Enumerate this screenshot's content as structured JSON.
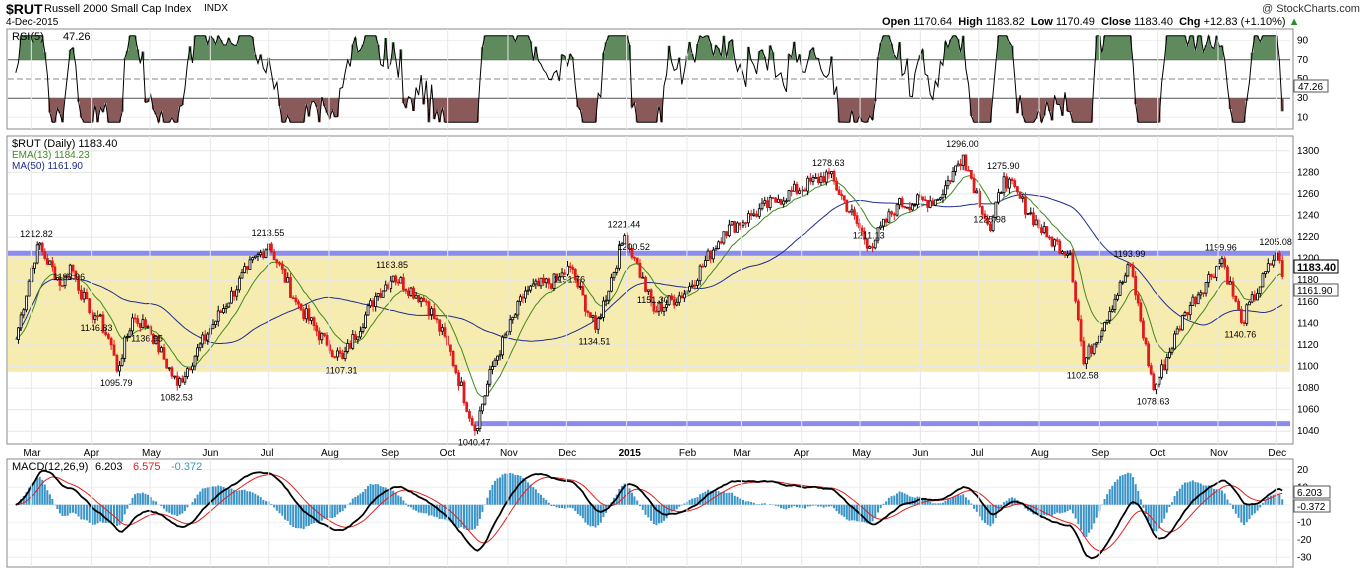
{
  "header": {
    "symbol": "$RUT",
    "name": "Russell 2000 Small Cap Index",
    "exchange": "INDX",
    "date": "4-Dec-2015",
    "copyright": "@ StockCharts.com",
    "open_label": "Open",
    "open": "1170.64",
    "high_label": "High",
    "high": "1183.82",
    "low_label": "Low",
    "low": "1170.49",
    "close_label": "Close",
    "close": "1183.40",
    "chg_label": "Chg",
    "chg": "+12.83 (+1.10%)"
  },
  "rsi_panel": {
    "label": "RSI(5)",
    "value": "47.26",
    "ticks": [
      90,
      70,
      50,
      30,
      10
    ]
  },
  "price_panel": {
    "legend": "$RUT (Daily) 1183.40",
    "ema_label": "EMA(13) 1184.23",
    "ma_label": "MA(50) 1161.90",
    "last_close_tag": "1183.40",
    "ma_tag": "1161.90",
    "ticks": [
      1300,
      1280,
      1260,
      1240,
      1220,
      1200,
      1180,
      1160,
      1140,
      1120,
      1100,
      1080,
      1060,
      1040
    ],
    "callouts": [
      "1212.82",
      "1193.96",
      "1157.87",
      "1146.83",
      "1136.95",
      "1095.79",
      "1082.53",
      "1213.55",
      "1183.85",
      "1107.31",
      "1040.47",
      "1191.76",
      "1221.44",
      "1200.52",
      "1134.51",
      "1151.30",
      "1278.63",
      "1211.13",
      "1296.00",
      "1275.90",
      "1225.98",
      "1193.99",
      "1102.58",
      "1078.63",
      "1199.96",
      "1205.08",
      "1140.76"
    ]
  },
  "macd_panel": {
    "label": "MACD(12,26,9)",
    "macd": "6.203",
    "signal": "6.575",
    "hist": "-0.372",
    "ticks": [
      20,
      10,
      0,
      -10,
      -20,
      -30
    ],
    "tag_macd": "6.203",
    "tag_hist": "-0.372"
  },
  "x_axis": {
    "labels": [
      "Mar",
      "Apr",
      "May",
      "Jun",
      "Jul",
      "Aug",
      "Sep",
      "Oct",
      "Nov",
      "Dec",
      "2015",
      "Feb",
      "Mar",
      "Apr",
      "May",
      "Jun",
      "Jul",
      "Aug",
      "Sep",
      "Oct",
      "Nov",
      "Dec"
    ]
  },
  "colors": {
    "up_candle": "#000000",
    "down_candle": "#e01b1b",
    "ema": "#3f8a1c",
    "ma": "#1f2c8c",
    "support_band": "#f7ecb0",
    "support_line": "#8c8cf0",
    "rsi_overbought": "#5e8a5e",
    "rsi_oversold": "#8a5a5a",
    "macd_hist": "#3a94c8",
    "macd_signal": "#e02020"
  },
  "chart_data": {
    "type": "line",
    "title": "Russell 2000 Small Cap Index",
    "series_name": "$RUT (Daily)",
    "x": [
      "2014-03",
      "2014-04",
      "2014-05",
      "2014-06",
      "2014-07",
      "2014-08",
      "2014-09",
      "2014-10",
      "2014-11",
      "2014-12",
      "2015-01",
      "2015-02",
      "2015-03",
      "2015-04",
      "2015-05",
      "2015-06",
      "2015-07",
      "2015-08",
      "2015-09",
      "2015-10",
      "2015-11",
      "2015-12"
    ],
    "ylim": [
      1030,
      1310
    ],
    "price_points": [
      {
        "date": "2014-02-21",
        "close": 1125
      },
      {
        "date": "2014-03-04",
        "close": 1212.82
      },
      {
        "date": "2014-03-17",
        "close": 1175
      },
      {
        "date": "2014-03-21",
        "close": 1193.96
      },
      {
        "date": "2014-03-31",
        "close": 1150
      },
      {
        "date": "2014-04-04",
        "close": 1146.83
      },
      {
        "date": "2014-04-11",
        "close": 1120
      },
      {
        "date": "2014-04-14",
        "close": 1095.79
      },
      {
        "date": "2014-04-22",
        "close": 1145
      },
      {
        "date": "2014-04-30",
        "close": 1136.95
      },
      {
        "date": "2014-05-15",
        "close": 1082.53
      },
      {
        "date": "2014-06-01",
        "close": 1135
      },
      {
        "date": "2014-06-20",
        "close": 1190
      },
      {
        "date": "2014-07-01",
        "close": 1213.55
      },
      {
        "date": "2014-07-15",
        "close": 1160
      },
      {
        "date": "2014-07-31",
        "close": 1120
      },
      {
        "date": "2014-08-08",
        "close": 1107.31
      },
      {
        "date": "2014-08-25",
        "close": 1165
      },
      {
        "date": "2014-09-03",
        "close": 1183.85
      },
      {
        "date": "2014-09-20",
        "close": 1160
      },
      {
        "date": "2014-10-01",
        "close": 1120
      },
      {
        "date": "2014-10-15",
        "close": 1040.47
      },
      {
        "date": "2014-10-24",
        "close": 1100
      },
      {
        "date": "2014-11-10",
        "close": 1170
      },
      {
        "date": "2014-11-26",
        "close": 1180
      },
      {
        "date": "2014-12-03",
        "close": 1191.76
      },
      {
        "date": "2014-12-16",
        "close": 1134.51
      },
      {
        "date": "2014-12-31",
        "close": 1221.44
      },
      {
        "date": "2015-01-05",
        "close": 1200.52
      },
      {
        "date": "2015-01-15",
        "close": 1151.3
      },
      {
        "date": "2015-02-01",
        "close": 1170
      },
      {
        "date": "2015-02-20",
        "close": 1225
      },
      {
        "date": "2015-03-06",
        "close": 1240
      },
      {
        "date": "2015-03-20",
        "close": 1255
      },
      {
        "date": "2015-04-15",
        "close": 1278.63
      },
      {
        "date": "2015-05-06",
        "close": 1211.13
      },
      {
        "date": "2015-05-20",
        "close": 1250
      },
      {
        "date": "2015-06-10",
        "close": 1255
      },
      {
        "date": "2015-06-23",
        "close": 1296.0
      },
      {
        "date": "2015-07-07",
        "close": 1225.98
      },
      {
        "date": "2015-07-14",
        "close": 1275.9
      },
      {
        "date": "2015-08-05",
        "close": 1220
      },
      {
        "date": "2015-08-17",
        "close": 1205
      },
      {
        "date": "2015-08-24",
        "close": 1102.58
      },
      {
        "date": "2015-09-17",
        "close": 1193.99
      },
      {
        "date": "2015-09-29",
        "close": 1078.63
      },
      {
        "date": "2015-10-15",
        "close": 1150
      },
      {
        "date": "2015-11-03",
        "close": 1199.96
      },
      {
        "date": "2015-11-13",
        "close": 1140.76
      },
      {
        "date": "2015-12-01",
        "close": 1205.08
      },
      {
        "date": "2015-12-04",
        "close": 1183.4
      }
    ],
    "support_band": [
      1095,
      1205
    ],
    "support_line_low": 1047,
    "rsi": [
      50,
      85,
      20,
      75,
      10,
      80,
      60,
      85,
      30,
      90,
      15,
      70,
      45,
      85,
      25,
      70,
      50,
      20,
      80,
      47.26
    ],
    "macd": [
      -6,
      14,
      3,
      12,
      -10,
      15,
      10,
      -5,
      -14,
      -20,
      8,
      22,
      5,
      12,
      -2,
      18,
      5,
      12,
      10,
      -2,
      -26,
      -10,
      10,
      15,
      6.2
    ],
    "macd_signal": [
      -4,
      10,
      6,
      8,
      -5,
      12,
      12,
      0,
      -10,
      -18,
      0,
      20,
      10,
      10,
      2,
      14,
      8,
      10,
      10,
      2,
      -20,
      -14,
      4,
      12,
      6.575
    ]
  }
}
